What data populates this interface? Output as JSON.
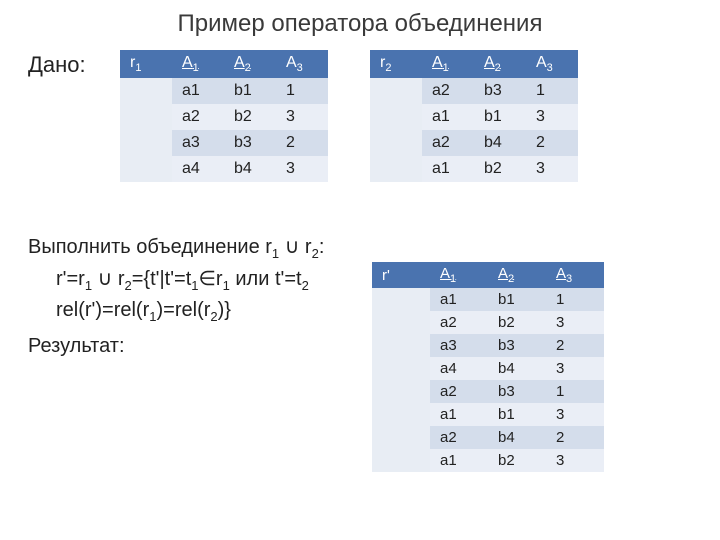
{
  "colors": {
    "header_bg": "#4a73af",
    "header_fg": "#ffffff",
    "rowhead_bg": "#e8edf4",
    "row_odd_bg": "#d4ddeb",
    "row_even_bg": "#eaeef6",
    "page_bg": "#ffffff",
    "text": "#222222"
  },
  "title": "Пример оператора объединения",
  "given_label": "Дано:",
  "perform_line1_a": "Выполнить объединение r",
  "perform_line1_b": " ∪ r",
  "perform_line1_c": ":",
  "perform_line2_a": "r'=r",
  "perform_line2_b": " ∪ r",
  "perform_line2_c": "={t'|t'=t",
  "perform_line2_d": "∈r",
  "perform_line2_e": " или t'=t",
  "perform_line3_a": "rel(r')=rel(r",
  "perform_line3_b": ")=rel(r",
  "perform_line3_c": ")}",
  "sub1": "1",
  "sub2": "2",
  "result_label": "Результат:",
  "tables": {
    "r1": {
      "name": "r",
      "name_sub": "1",
      "cols": [
        "A",
        "A",
        "A"
      ],
      "col_subs": [
        "1",
        "2",
        "3"
      ],
      "col_underline": [
        true,
        true,
        false
      ],
      "rows": [
        [
          "a1",
          "b1",
          "1"
        ],
        [
          "a2",
          "b2",
          "3"
        ],
        [
          "a3",
          "b3",
          "2"
        ],
        [
          "a4",
          "b4",
          "3"
        ]
      ]
    },
    "r2": {
      "name": "r",
      "name_sub": "2",
      "cols": [
        "A",
        "A",
        "A"
      ],
      "col_subs": [
        "1",
        "2",
        "3"
      ],
      "col_underline": [
        true,
        true,
        false
      ],
      "rows": [
        [
          "a2",
          "b3",
          "1"
        ],
        [
          "a1",
          "b1",
          "3"
        ],
        [
          "a2",
          "b4",
          "2"
        ],
        [
          "a1",
          "b2",
          "3"
        ]
      ]
    },
    "rp": {
      "name": "r'",
      "name_sub": "",
      "cols": [
        "A",
        "A",
        "A"
      ],
      "col_subs": [
        "1",
        "2",
        "3"
      ],
      "col_underline": [
        true,
        true,
        true
      ],
      "rows": [
        [
          "a1",
          "b1",
          "1"
        ],
        [
          "a2",
          "b2",
          "3"
        ],
        [
          "a3",
          "b3",
          "2"
        ],
        [
          "a4",
          "b4",
          "3"
        ],
        [
          "a2",
          "b3",
          "1"
        ],
        [
          "a1",
          "b1",
          "3"
        ],
        [
          "a2",
          "b4",
          "2"
        ],
        [
          "a1",
          "b2",
          "3"
        ]
      ]
    }
  }
}
